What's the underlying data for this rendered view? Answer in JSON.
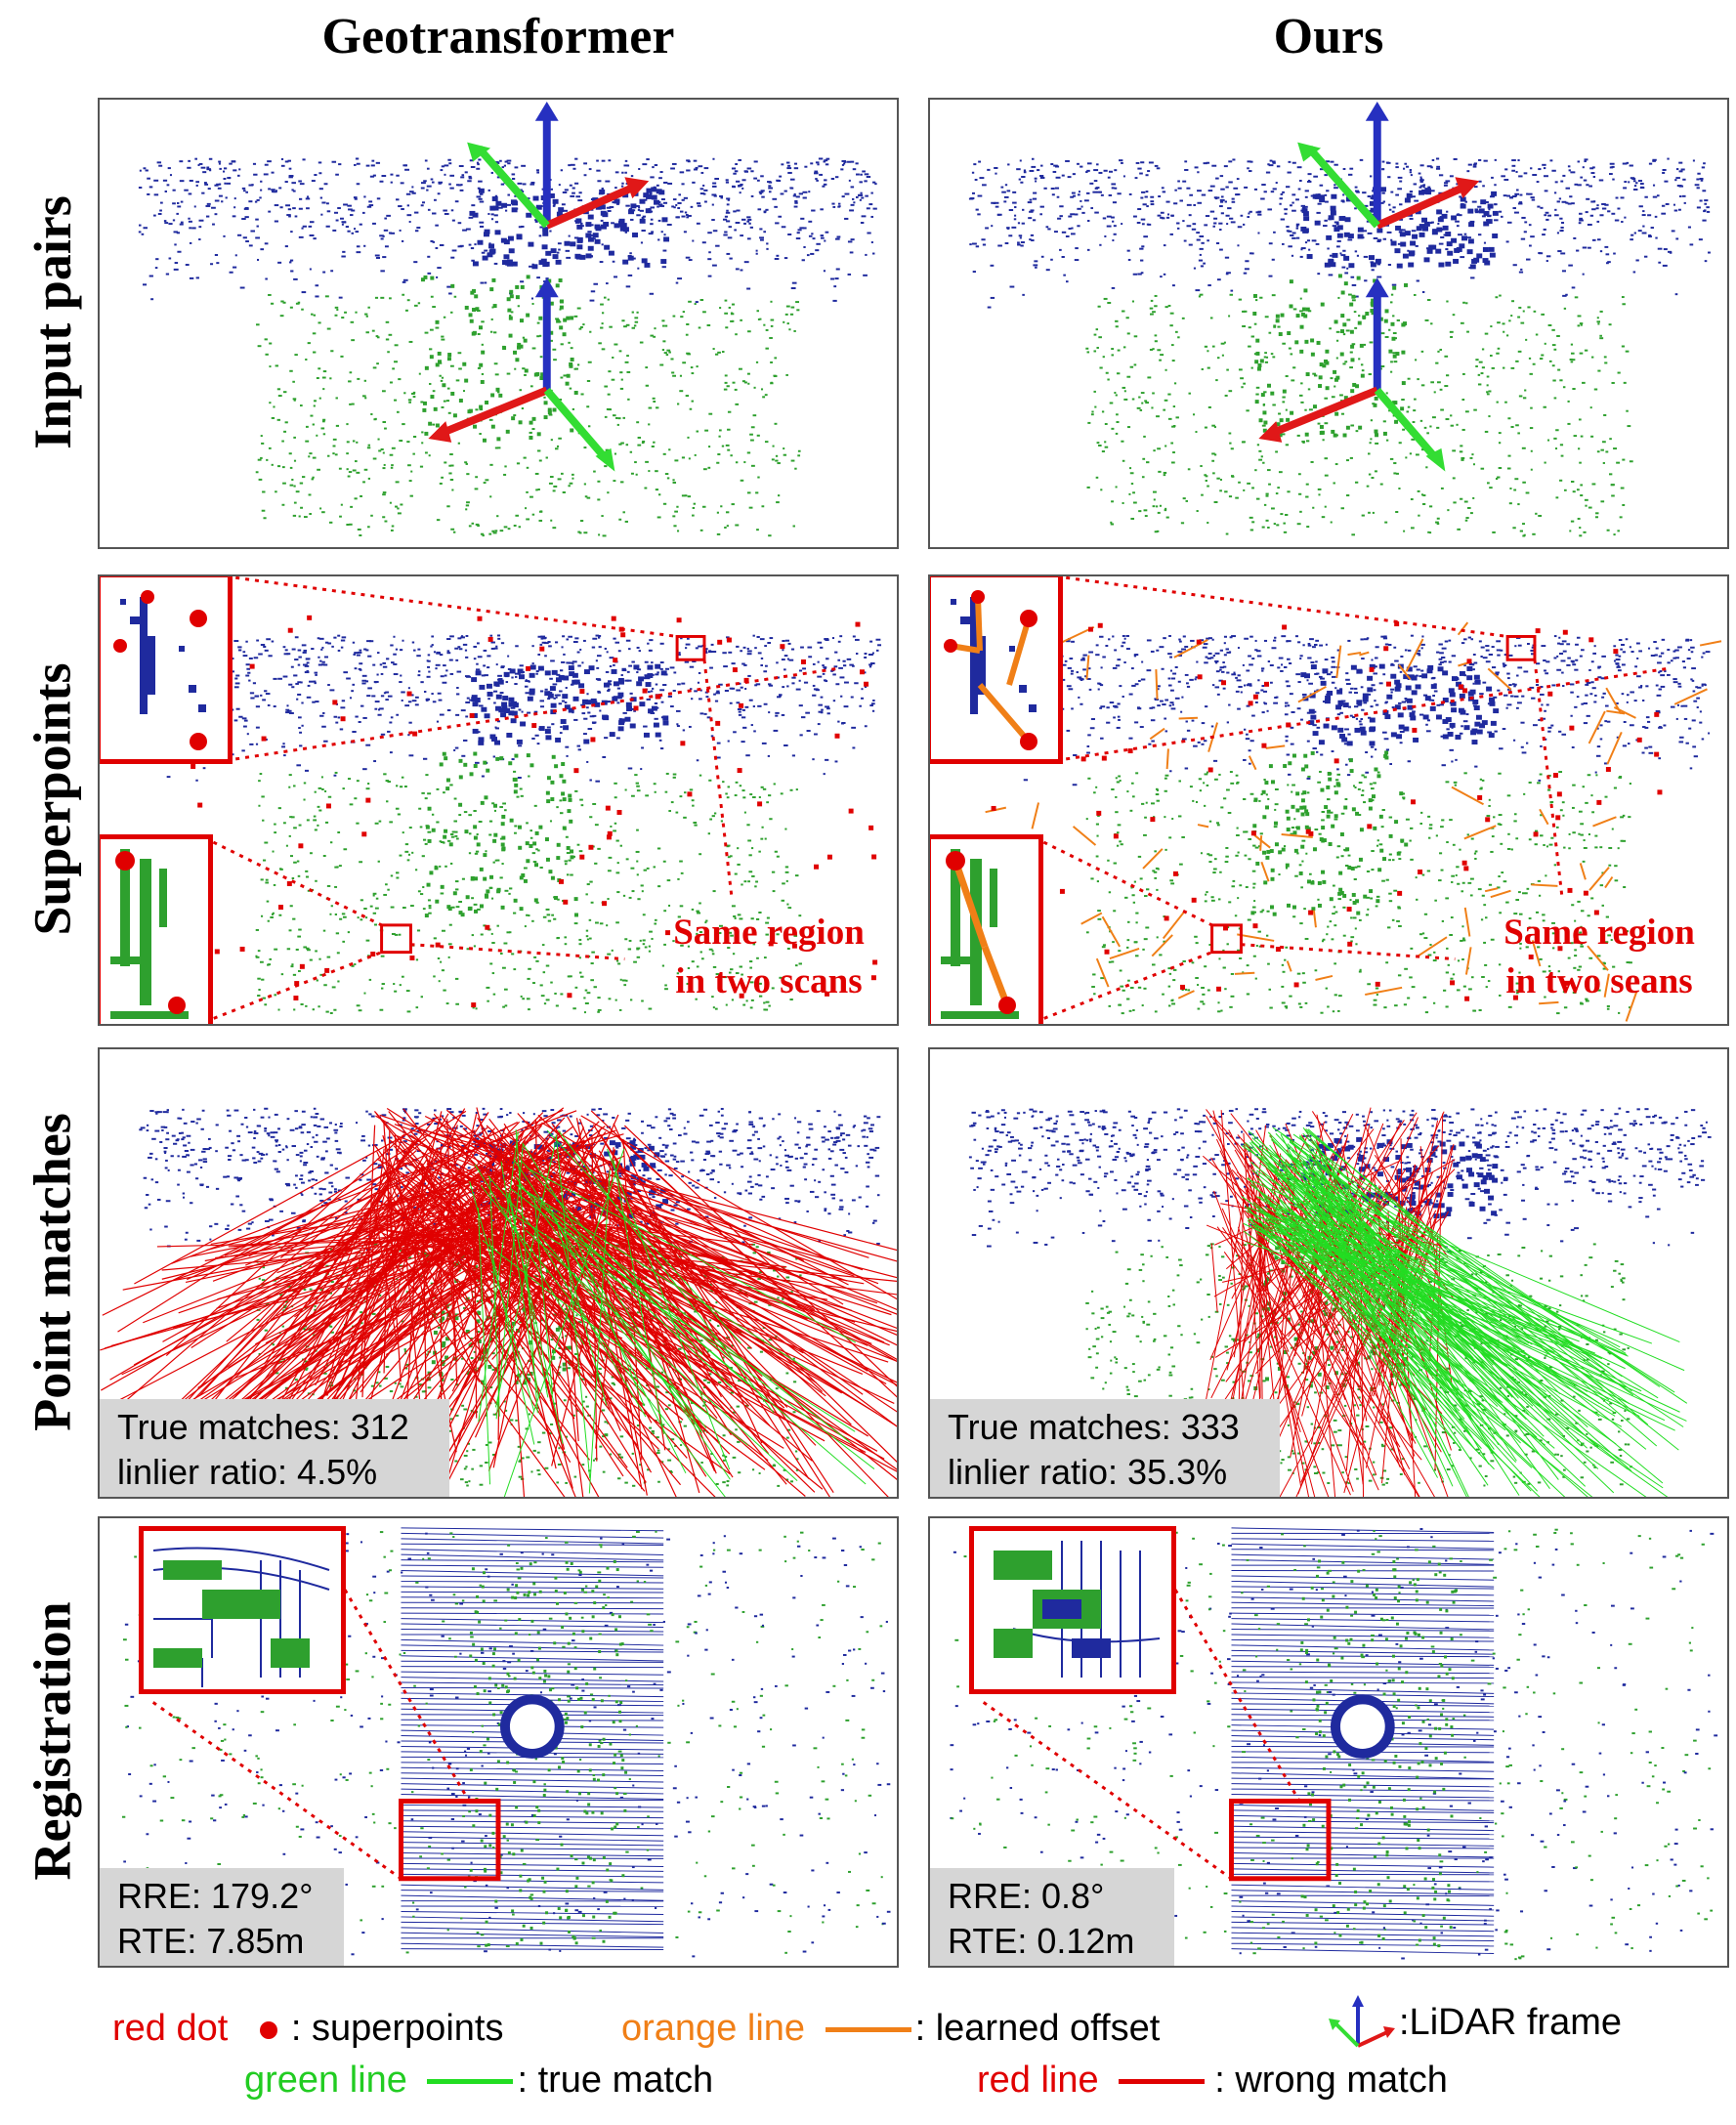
{
  "columns": [
    "Geotransformer",
    "Ours"
  ],
  "rows": [
    "Input pairs",
    "Superpoints",
    "Point matches",
    "Registration"
  ],
  "callouts": {
    "left": {
      "line1": "Same region",
      "line2": "in two scans"
    },
    "right": {
      "line1": "Same region",
      "line2": "in two seans"
    }
  },
  "matches": {
    "left": {
      "true_matches": "True matches: 312",
      "inlier_ratio": "linlier ratio: 4.5%"
    },
    "right": {
      "true_matches": "True matches: 333",
      "inlier_ratio": "linlier ratio: 35.3%"
    }
  },
  "registration": {
    "left": {
      "rre": "RRE: 179.2°",
      "rte": "RTE: 7.85m"
    },
    "right": {
      "rre": "RRE: 0.8°",
      "rte": "RTE: 0.12m"
    }
  },
  "legend": {
    "red_dot": "red dot",
    "superpoints": ": superpoints",
    "orange_line": "orange line",
    "learned_offset": ": learned offset",
    "lidar_frame": ":LiDAR frame",
    "green_line": "green line",
    "true_match": ": true match",
    "red_line": "red line",
    "wrong_match": ": wrong match"
  },
  "colors": {
    "source_cloud": "#1f2a9e",
    "target_cloud": "#2ea02e",
    "highlight": "#e00000",
    "offset": "#f07f17",
    "true_match": "#22dd22",
    "stat_bg": "#d6d6d6"
  }
}
